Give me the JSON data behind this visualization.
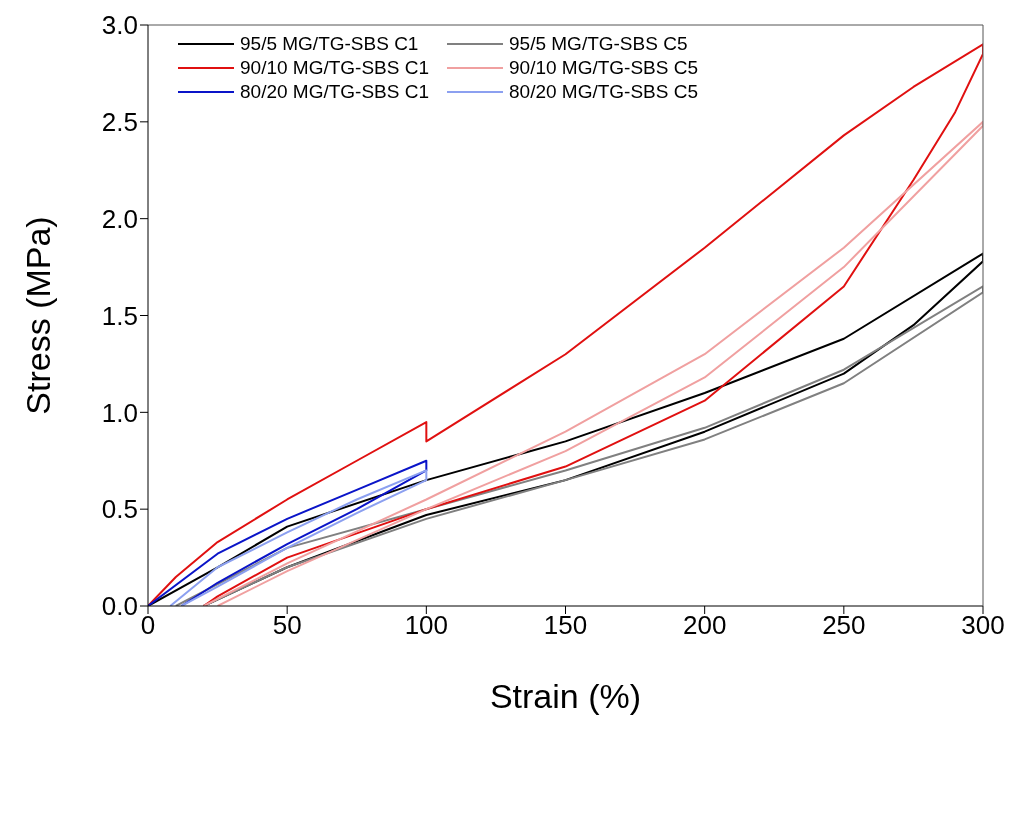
{
  "chart_data": {
    "type": "line",
    "xlabel": "Strain (%)",
    "ylabel": "Stress (MPa)",
    "xlim": [
      0,
      300
    ],
    "xticks": [
      0,
      50,
      100,
      150,
      200,
      250,
      300
    ],
    "ylim": [
      0,
      3
    ],
    "yticks": [
      {
        "value": 0,
        "label": "0.0"
      },
      {
        "value": 0.5,
        "label": "0.5"
      },
      {
        "value": 1,
        "label": "1.0"
      },
      {
        "value": 1.5,
        "label": "1.5"
      },
      {
        "value": 2,
        "label": "2.0"
      },
      {
        "value": 2.5,
        "label": "2.5"
      },
      {
        "value": 3,
        "label": "3.0"
      }
    ],
    "legend": "top left",
    "marker": "none",
    "line_style": "solid",
    "series": [
      {
        "name": "95/5 MG/TG-SBS C1",
        "color": "#000000",
        "x": [
          0,
          25,
          50,
          100,
          150,
          200,
          250,
          300,
          300,
          275,
          250,
          200,
          150,
          100,
          50,
          20
        ],
        "values": [
          0,
          0.2,
          0.41,
          0.65,
          0.85,
          1.1,
          1.38,
          1.82,
          1.78,
          1.45,
          1.2,
          0.9,
          0.65,
          0.47,
          0.2,
          0
        ]
      },
      {
        "name": "95/5 MG/TG-SBS C5",
        "color": "#808080",
        "x": [
          10,
          50,
          100,
          150,
          200,
          250,
          300,
          300,
          250,
          200,
          150,
          100,
          50,
          20
        ],
        "values": [
          0,
          0.3,
          0.5,
          0.7,
          0.92,
          1.22,
          1.65,
          1.62,
          1.15,
          0.86,
          0.65,
          0.45,
          0.2,
          0
        ]
      },
      {
        "name": "90/10 MG/TG-SBS C1",
        "color": "#e01010",
        "x": [
          0,
          10,
          25,
          50,
          75,
          100,
          100,
          150,
          200,
          250,
          275,
          300,
          300,
          290,
          275,
          250,
          200,
          150,
          100,
          50,
          25,
          20
        ],
        "values": [
          0,
          0.15,
          0.33,
          0.55,
          0.75,
          0.95,
          0.85,
          1.3,
          1.85,
          2.43,
          2.68,
          2.9,
          2.85,
          2.55,
          2.2,
          1.65,
          1.06,
          0.72,
          0.5,
          0.25,
          0.05,
          0
        ]
      },
      {
        "name": "90/10 MG/TG-SBS C5",
        "color": "#f0a0a0",
        "x": [
          20,
          50,
          100,
          150,
          200,
          250,
          300,
          300,
          250,
          200,
          150,
          100,
          50,
          25
        ],
        "values": [
          0,
          0.22,
          0.55,
          0.9,
          1.3,
          1.85,
          2.5,
          2.48,
          1.75,
          1.18,
          0.8,
          0.5,
          0.18,
          0
        ]
      },
      {
        "name": "80/20 MG/TG-SBS C1",
        "color": "#0a14c8",
        "x": [
          0,
          25,
          50,
          75,
          100,
          100,
          75,
          50,
          25,
          12
        ],
        "values": [
          0,
          0.27,
          0.45,
          0.6,
          0.75,
          0.7,
          0.5,
          0.32,
          0.12,
          0
        ]
      },
      {
        "name": "80/20 MG/TG-SBS C5",
        "color": "#8ca0f0",
        "x": [
          8,
          25,
          50,
          75,
          100,
          100,
          75,
          50,
          25,
          12
        ],
        "values": [
          0,
          0.2,
          0.38,
          0.55,
          0.7,
          0.65,
          0.48,
          0.3,
          0.1,
          0
        ]
      }
    ]
  }
}
